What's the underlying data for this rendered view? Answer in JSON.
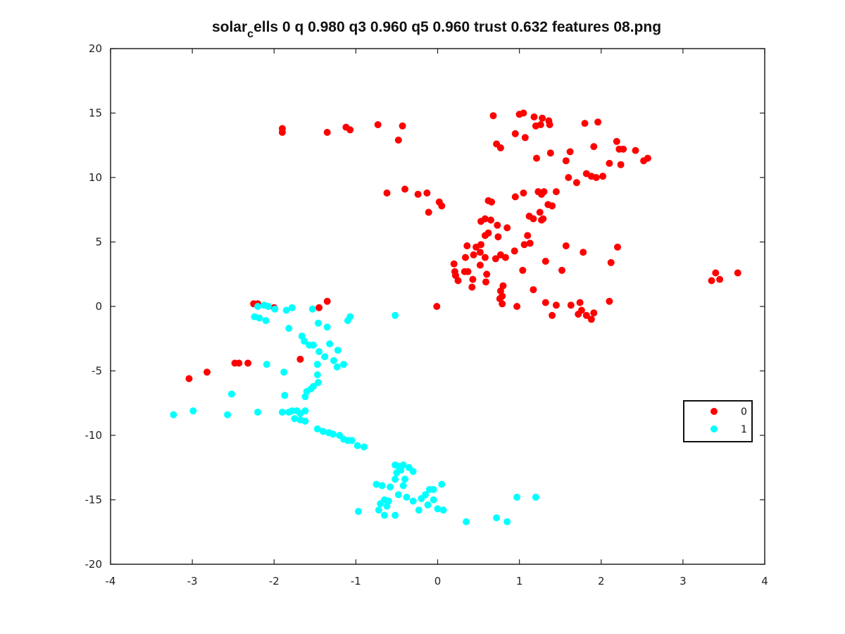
{
  "chart_data": {
    "type": "scatter",
    "title": "solar_cells 0 q 0.980 q3 0.960 q5 0.960 trust 0.632 features 08.png",
    "title_display": {
      "main": "solar",
      "sub": "c",
      "rest": "ells 0 q 0.980 q3 0.960 q5 0.960 trust 0.632 features 08.png"
    },
    "xlabel": "",
    "ylabel": "",
    "xlim": [
      -4,
      4
    ],
    "ylim": [
      -20,
      20
    ],
    "xticks": [
      "-4",
      "-3",
      "-2",
      "-1",
      "0",
      "1",
      "2",
      "3",
      "4"
    ],
    "yticks": [
      "20",
      "15",
      "10",
      "5",
      "0",
      "-5",
      "-10",
      "-15",
      "-20"
    ],
    "grid": false,
    "legend_position": "right",
    "series": [
      {
        "name": "0",
        "color": "#ff0000",
        "points": [
          [
            -1.9,
            13.8
          ],
          [
            -1.9,
            13.5
          ],
          [
            -1.35,
            13.5
          ],
          [
            -1.12,
            13.9
          ],
          [
            -1.07,
            13.7
          ],
          [
            -0.73,
            14.1
          ],
          [
            -0.48,
            12.9
          ],
          [
            -0.43,
            14.0
          ],
          [
            0.68,
            14.8
          ],
          [
            1.0,
            14.9
          ],
          [
            1.05,
            15.0
          ],
          [
            1.2,
            14.0
          ],
          [
            1.18,
            14.7
          ],
          [
            1.28,
            14.6
          ],
          [
            1.36,
            14.4
          ],
          [
            1.26,
            14.1
          ],
          [
            1.37,
            14.1
          ],
          [
            0.72,
            12.6
          ],
          [
            0.77,
            12.3
          ],
          [
            0.95,
            13.4
          ],
          [
            1.07,
            13.1
          ],
          [
            1.21,
            11.5
          ],
          [
            1.38,
            11.9
          ],
          [
            1.57,
            11.3
          ],
          [
            1.62,
            12.0
          ],
          [
            1.8,
            14.2
          ],
          [
            1.96,
            14.3
          ],
          [
            1.91,
            12.4
          ],
          [
            2.19,
            12.8
          ],
          [
            2.22,
            12.2
          ],
          [
            2.27,
            12.2
          ],
          [
            2.42,
            12.1
          ],
          [
            2.24,
            11.0
          ],
          [
            2.52,
            11.3
          ],
          [
            2.57,
            11.5
          ],
          [
            2.1,
            11.1
          ],
          [
            1.6,
            10.0
          ],
          [
            1.7,
            9.6
          ],
          [
            1.82,
            10.3
          ],
          [
            1.88,
            10.1
          ],
          [
            1.94,
            10.0
          ],
          [
            2.02,
            10.1
          ],
          [
            -0.62,
            8.8
          ],
          [
            -0.4,
            9.1
          ],
          [
            -0.24,
            8.7
          ],
          [
            -0.13,
            8.8
          ],
          [
            -0.11,
            7.3
          ],
          [
            0.02,
            8.1
          ],
          [
            0.05,
            7.8
          ],
          [
            0.62,
            8.2
          ],
          [
            0.66,
            8.1
          ],
          [
            0.95,
            8.5
          ],
          [
            1.05,
            8.8
          ],
          [
            1.23,
            8.9
          ],
          [
            1.27,
            8.7
          ],
          [
            1.3,
            8.9
          ],
          [
            1.45,
            8.9
          ],
          [
            1.25,
            7.3
          ],
          [
            1.35,
            7.9
          ],
          [
            1.4,
            7.8
          ],
          [
            1.12,
            7.0
          ],
          [
            1.17,
            6.8
          ],
          [
            1.27,
            6.7
          ],
          [
            1.29,
            6.8
          ],
          [
            0.53,
            6.6
          ],
          [
            0.58,
            6.8
          ],
          [
            0.65,
            6.7
          ],
          [
            0.73,
            6.3
          ],
          [
            0.58,
            5.5
          ],
          [
            0.62,
            5.7
          ],
          [
            0.74,
            5.4
          ],
          [
            0.85,
            6.1
          ],
          [
            0.47,
            4.6
          ],
          [
            0.53,
            4.8
          ],
          [
            0.36,
            4.7
          ],
          [
            0.44,
            4.0
          ],
          [
            0.52,
            4.2
          ],
          [
            0.34,
            3.8
          ],
          [
            0.58,
            3.8
          ],
          [
            0.71,
            3.7
          ],
          [
            0.77,
            4.0
          ],
          [
            0.83,
            3.8
          ],
          [
            0.94,
            4.3
          ],
          [
            1.06,
            4.8
          ],
          [
            1.1,
            5.5
          ],
          [
            1.13,
            4.9
          ],
          [
            0.2,
            3.3
          ],
          [
            0.21,
            2.7
          ],
          [
            0.22,
            2.4
          ],
          [
            0.25,
            2.0
          ],
          [
            0.33,
            2.7
          ],
          [
            0.37,
            2.7
          ],
          [
            0.43,
            2.1
          ],
          [
            0.42,
            1.5
          ],
          [
            0.52,
            3.2
          ],
          [
            0.6,
            2.5
          ],
          [
            0.59,
            1.9
          ],
          [
            0.77,
            1.2
          ],
          [
            0.8,
            1.6
          ],
          [
            0.79,
            0.8
          ],
          [
            0.76,
            0.6
          ],
          [
            0.79,
            0.2
          ],
          [
            1.04,
            2.8
          ],
          [
            1.17,
            1.3
          ],
          [
            1.32,
            3.5
          ],
          [
            1.52,
            2.8
          ],
          [
            1.57,
            4.7
          ],
          [
            1.78,
            4.2
          ],
          [
            2.12,
            3.4
          ],
          [
            2.2,
            4.6
          ],
          [
            0.97,
            0.0
          ],
          [
            1.32,
            0.3
          ],
          [
            1.45,
            0.1
          ],
          [
            1.4,
            -0.7
          ],
          [
            1.63,
            0.1
          ],
          [
            1.72,
            -0.6
          ],
          [
            1.74,
            0.3
          ],
          [
            1.76,
            -0.3
          ],
          [
            1.82,
            -0.7
          ],
          [
            1.88,
            -1.0
          ],
          [
            1.91,
            -0.5
          ],
          [
            2.1,
            0.4
          ],
          [
            3.35,
            2.0
          ],
          [
            3.4,
            2.6
          ],
          [
            3.45,
            2.1
          ],
          [
            3.67,
            2.6
          ],
          [
            -0.01,
            0.0
          ],
          [
            -1.35,
            0.4
          ],
          [
            -1.45,
            -0.1
          ],
          [
            -2.25,
            0.2
          ],
          [
            -2.2,
            0.2
          ],
          [
            -2.0,
            -0.1
          ],
          [
            -1.68,
            -4.1
          ],
          [
            -2.48,
            -4.4
          ],
          [
            -2.43,
            -4.4
          ],
          [
            -2.32,
            -4.4
          ],
          [
            -2.82,
            -5.1
          ],
          [
            -3.04,
            -5.6
          ]
        ]
      },
      {
        "name": "1",
        "color": "#00ffff",
        "points": [
          [
            -2.2,
            0.0
          ],
          [
            -2.12,
            0.1
          ],
          [
            -2.07,
            0.0
          ],
          [
            -1.99,
            -0.2
          ],
          [
            -1.85,
            -0.3
          ],
          [
            -1.78,
            -0.1
          ],
          [
            -1.53,
            -0.2
          ],
          [
            -2.24,
            -0.8
          ],
          [
            -2.18,
            -0.9
          ],
          [
            -2.1,
            -1.1
          ],
          [
            -1.82,
            -1.7
          ],
          [
            -1.46,
            -1.3
          ],
          [
            -1.35,
            -1.6
          ],
          [
            -1.1,
            -1.1
          ],
          [
            -1.07,
            -0.8
          ],
          [
            -0.52,
            -0.7
          ],
          [
            -1.66,
            -2.3
          ],
          [
            -1.63,
            -2.7
          ],
          [
            -1.57,
            -3.0
          ],
          [
            -1.52,
            -3.0
          ],
          [
            -1.45,
            -3.5
          ],
          [
            -1.38,
            -3.9
          ],
          [
            -1.32,
            -2.9
          ],
          [
            -1.27,
            -4.2
          ],
          [
            -1.23,
            -4.7
          ],
          [
            -1.22,
            -3.4
          ],
          [
            -1.15,
            -4.5
          ],
          [
            -2.09,
            -4.5
          ],
          [
            -1.47,
            -4.5
          ],
          [
            -1.47,
            -5.3
          ],
          [
            -1.46,
            -5.9
          ],
          [
            -1.52,
            -6.2
          ],
          [
            -1.55,
            -6.4
          ],
          [
            -1.6,
            -6.6
          ],
          [
            -1.62,
            -7.0
          ],
          [
            -1.88,
            -5.1
          ],
          [
            -1.87,
            -6.9
          ],
          [
            -2.52,
            -6.8
          ],
          [
            -1.9,
            -8.2
          ],
          [
            -1.82,
            -8.2
          ],
          [
            -1.78,
            -8.1
          ],
          [
            -1.72,
            -8.1
          ],
          [
            -1.68,
            -8.3
          ],
          [
            -1.62,
            -8.1
          ],
          [
            -1.75,
            -8.7
          ],
          [
            -1.68,
            -8.8
          ],
          [
            -1.62,
            -8.9
          ],
          [
            -2.2,
            -8.2
          ],
          [
            -2.57,
            -8.4
          ],
          [
            -3.23,
            -8.4
          ],
          [
            -2.99,
            -8.1
          ],
          [
            -1.47,
            -9.5
          ],
          [
            -1.4,
            -9.7
          ],
          [
            -1.33,
            -9.8
          ],
          [
            -1.28,
            -9.9
          ],
          [
            -1.2,
            -10.0
          ],
          [
            -1.15,
            -10.3
          ],
          [
            -1.1,
            -10.4
          ],
          [
            -1.05,
            -10.4
          ],
          [
            -0.98,
            -10.8
          ],
          [
            -0.9,
            -10.9
          ],
          [
            -0.52,
            -12.3
          ],
          [
            -0.48,
            -12.4
          ],
          [
            -0.42,
            -12.3
          ],
          [
            -0.35,
            -12.5
          ],
          [
            -0.3,
            -12.8
          ],
          [
            -0.45,
            -12.7
          ],
          [
            -0.5,
            -12.9
          ],
          [
            -0.4,
            -13.4
          ],
          [
            -0.42,
            -13.9
          ],
          [
            -0.52,
            -13.4
          ],
          [
            -0.58,
            -14.0
          ],
          [
            -0.75,
            -13.8
          ],
          [
            -0.68,
            -13.9
          ],
          [
            -0.48,
            -14.6
          ],
          [
            -0.38,
            -14.8
          ],
          [
            -0.3,
            -15.1
          ],
          [
            -0.2,
            -14.9
          ],
          [
            -0.15,
            -14.6
          ],
          [
            -0.1,
            -14.2
          ],
          [
            -0.05,
            -14.2
          ],
          [
            0.05,
            -13.8
          ],
          [
            -0.05,
            -15.0
          ],
          [
            -0.12,
            -15.4
          ],
          [
            -0.65,
            -15.0
          ],
          [
            -0.62,
            -15.5
          ],
          [
            -0.6,
            -15.1
          ],
          [
            -0.7,
            -15.3
          ],
          [
            -0.72,
            -15.8
          ],
          [
            -0.97,
            -15.9
          ],
          [
            -0.65,
            -16.2
          ],
          [
            -0.52,
            -16.2
          ],
          [
            -0.23,
            -15.8
          ],
          [
            0.0,
            -15.7
          ],
          [
            0.07,
            -15.8
          ],
          [
            0.35,
            -16.7
          ],
          [
            0.72,
            -16.4
          ],
          [
            0.85,
            -16.7
          ],
          [
            0.97,
            -14.8
          ],
          [
            1.2,
            -14.8
          ]
        ]
      }
    ]
  },
  "legend": {
    "entries": [
      "0",
      "1"
    ]
  }
}
